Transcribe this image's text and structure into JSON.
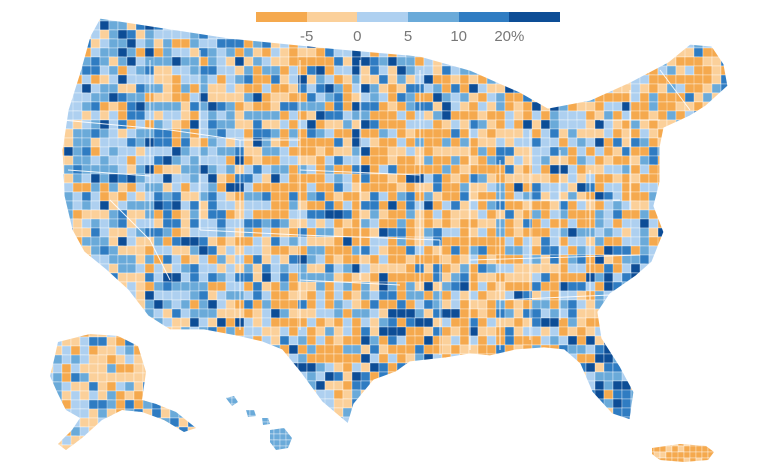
{
  "legend": {
    "segments": [
      {
        "color": "#f5a94e"
      },
      {
        "color": "#fbd09a"
      },
      {
        "color": "#aed0f0"
      },
      {
        "color": "#6aaad9"
      },
      {
        "color": "#2f7cc2"
      },
      {
        "color": "#0d4d96"
      }
    ],
    "ticks": [
      {
        "label": "-5",
        "value": -5
      },
      {
        "label": "0",
        "value": 0
      },
      {
        "label": "5",
        "value": 5
      },
      {
        "label": "10",
        "value": 10
      },
      {
        "label": "20%",
        "value": 20
      }
    ]
  },
  "map": {
    "regions": [
      "contiguous-us",
      "alaska",
      "hawaii",
      "puerto-rico"
    ],
    "border_color": "#ffffff"
  }
}
